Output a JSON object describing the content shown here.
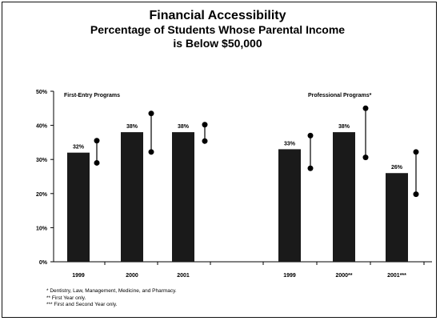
{
  "chart_data": {
    "type": "bar",
    "title": "Financial Accessibility",
    "subtitle_line1": "Percentage of Students Whose Parental Income",
    "subtitle_line2": "is Below $50,000",
    "ylim": [
      0,
      50
    ],
    "yticks": [
      "0%",
      "10%",
      "20%",
      "30%",
      "40%",
      "50%"
    ],
    "ytick_values": [
      0,
      10,
      20,
      30,
      40,
      50
    ],
    "grid": false,
    "groups": [
      {
        "name": "First-Entry Programs",
        "categories": [
          "1999",
          "2000",
          "2001"
        ]
      },
      {
        "name": "Professional Programs*",
        "categories": [
          "1999",
          "2000**",
          "2001***"
        ]
      }
    ],
    "values": [
      32,
      38,
      38,
      33,
      38,
      26
    ],
    "value_labels": [
      "32%",
      "38%",
      "38%",
      "33%",
      "38%",
      "26%"
    ],
    "ranges": [
      [
        29,
        35.5
      ],
      [
        32.2,
        43.5
      ],
      [
        35.4,
        40.2
      ],
      [
        27.4,
        37
      ],
      [
        30.6,
        45
      ],
      [
        19.8,
        32.2
      ]
    ],
    "bar_color": "#1a1a1a"
  },
  "footnotes": [
    "* Dentistry, Law, Management, Medicine, and Pharmacy.",
    "** First Year only.",
    "*** First and Second Year only."
  ]
}
